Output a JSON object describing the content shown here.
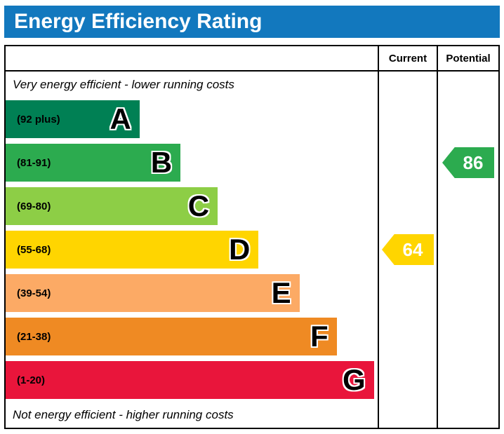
{
  "title": "Energy Efficiency Rating",
  "header": {
    "current_label": "Current",
    "potential_label": "Potential"
  },
  "captions": {
    "top": "Very energy efficient - lower running costs",
    "bottom": "Not energy efficient - higher running costs"
  },
  "colors": {
    "title_bar": "#1278be",
    "border": "#000000"
  },
  "chart_data": {
    "type": "epc_band_chart",
    "title": "Energy Efficiency Rating",
    "bands": [
      {
        "letter": "A",
        "range_label": "(92 plus)",
        "color": "#008054",
        "width_pct": 36
      },
      {
        "letter": "B",
        "range_label": "(81-91)",
        "color": "#2cab4f",
        "width_pct": 47
      },
      {
        "letter": "C",
        "range_label": "(69-80)",
        "color": "#8dce46",
        "width_pct": 57
      },
      {
        "letter": "D",
        "range_label": "(55-68)",
        "color": "#ffd500",
        "width_pct": 68
      },
      {
        "letter": "E",
        "range_label": "(39-54)",
        "color": "#fcaa65",
        "width_pct": 79
      },
      {
        "letter": "F",
        "range_label": "(21-38)",
        "color": "#ef8a23",
        "width_pct": 89
      },
      {
        "letter": "G",
        "range_label": "(1-20)",
        "color": "#e9153b",
        "width_pct": 99
      }
    ],
    "ratings": {
      "current": {
        "value": 64,
        "band": "D",
        "color": "#ffd500"
      },
      "potential": {
        "value": 86,
        "band": "B",
        "color": "#2cab4f"
      }
    }
  }
}
